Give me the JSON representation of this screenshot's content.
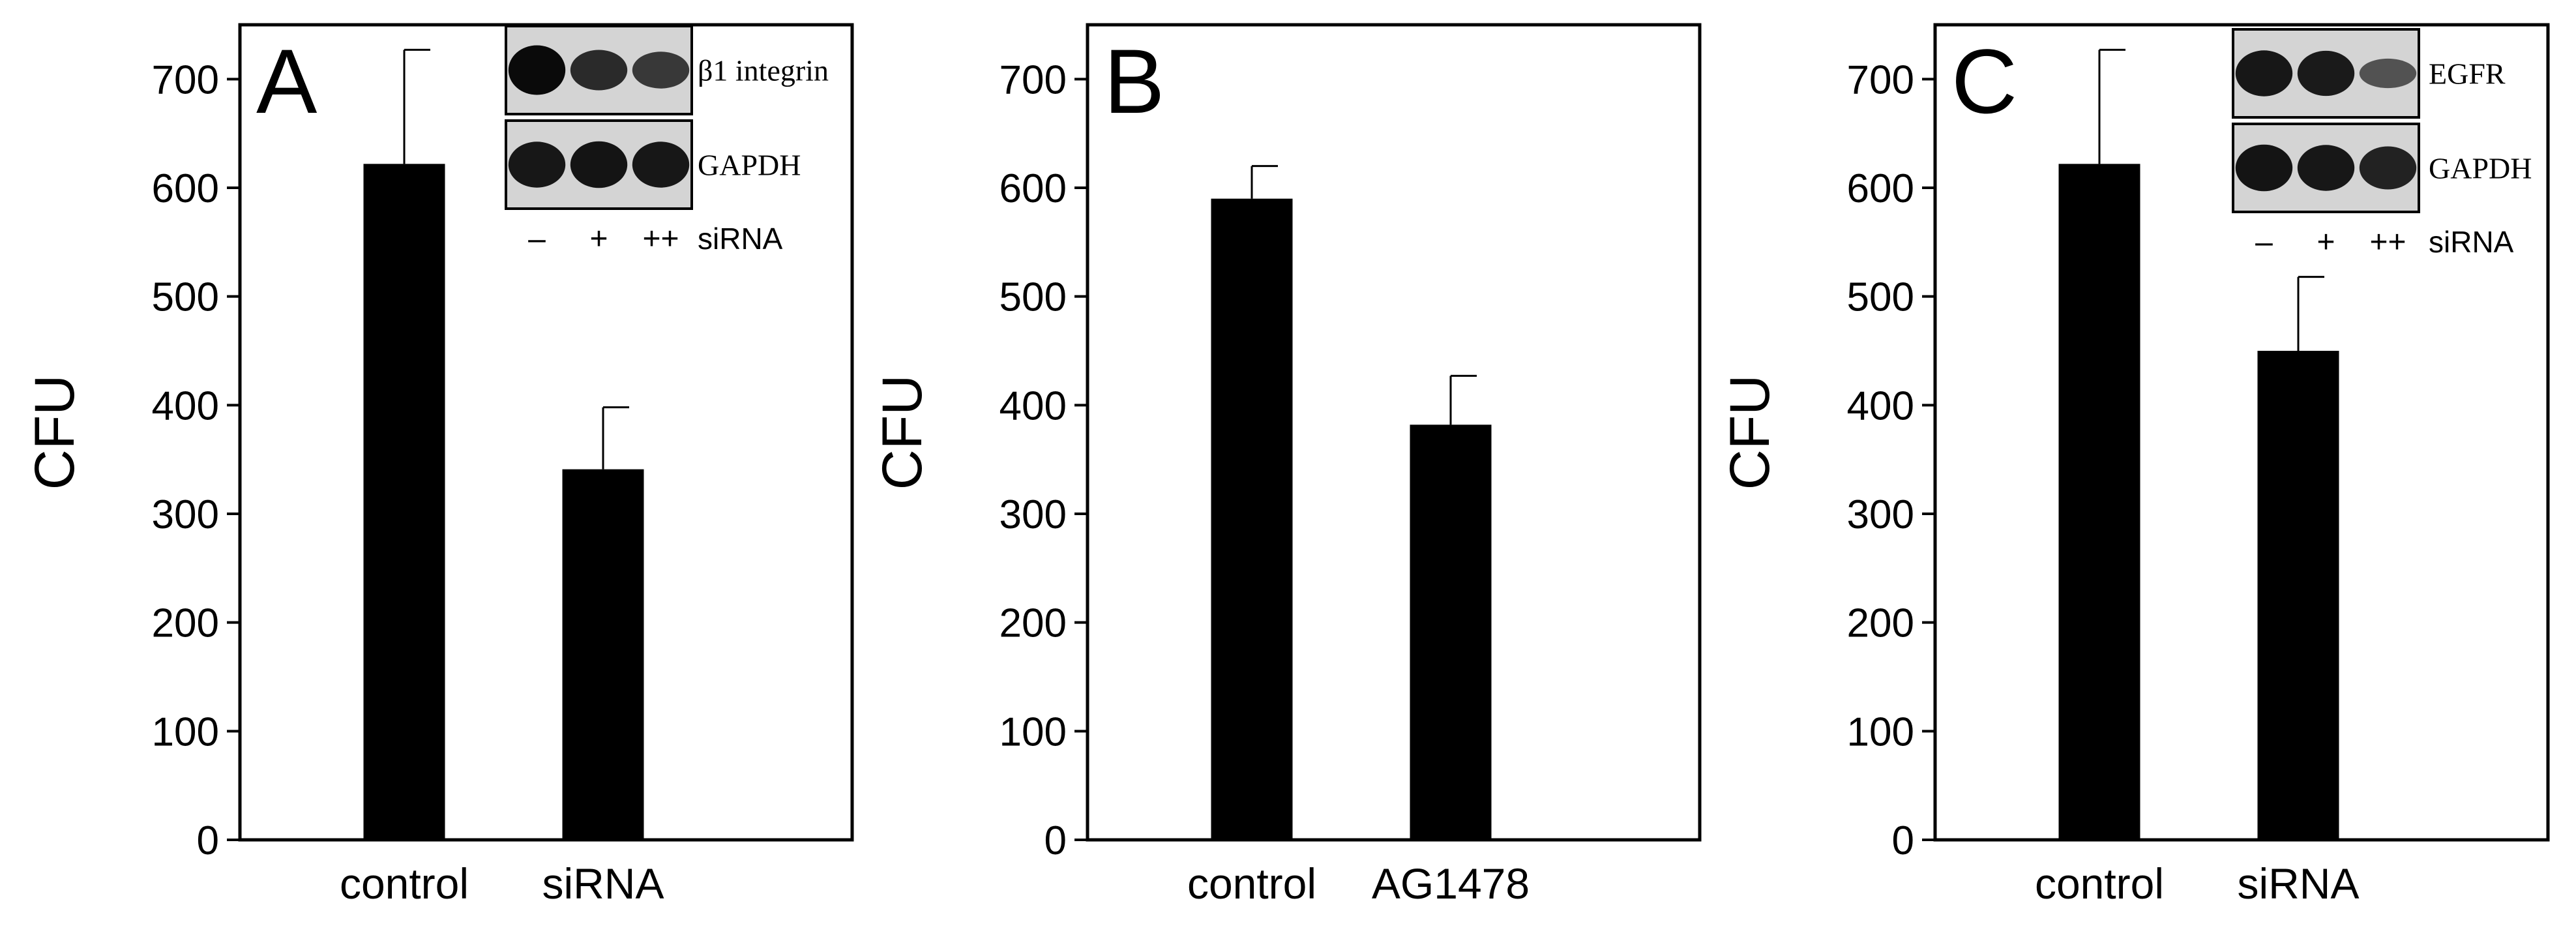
{
  "chart_data": [
    {
      "type": "bar",
      "panel_label": "A",
      "ylabel": "CFU",
      "xlabel": "",
      "ylim": [
        0,
        750
      ],
      "yticks": [
        "0",
        "100",
        "200",
        "300",
        "400",
        "500",
        "600",
        "700"
      ],
      "categories": [
        "control",
        "siRNA"
      ],
      "values": [
        622,
        341
      ],
      "errors": [
        105,
        57
      ],
      "bar_color": "#000000",
      "inset": {
        "type": "western-blot",
        "bands": [
          "β1 integrin",
          "GAPDH"
        ],
        "lanes": [
          "–",
          "+",
          "++"
        ],
        "lanes_label": "siRNA",
        "intensity": [
          [
            1.0,
            0.75,
            0.65
          ],
          [
            0.9,
            0.92,
            0.9
          ]
        ]
      }
    },
    {
      "type": "bar",
      "panel_label": "B",
      "ylabel": "CFU",
      "xlabel": "",
      "ylim": [
        0,
        750
      ],
      "yticks": [
        "0",
        "100",
        "200",
        "300",
        "400",
        "500",
        "600",
        "700"
      ],
      "categories": [
        "control",
        "AG1478"
      ],
      "values": [
        590,
        382
      ],
      "errors": [
        30,
        45
      ],
      "bar_color": "#000000"
    },
    {
      "type": "bar",
      "panel_label": "C",
      "ylabel": "CFU",
      "xlabel": "",
      "ylim": [
        0,
        750
      ],
      "yticks": [
        "0",
        "100",
        "200",
        "300",
        "400",
        "500",
        "600",
        "700"
      ],
      "categories": [
        "control",
        "siRNA"
      ],
      "values": [
        622,
        450
      ],
      "errors": [
        105,
        68
      ],
      "bar_color": "#000000",
      "inset": {
        "type": "western-blot",
        "bands": [
          "EGFR",
          "GAPDH"
        ],
        "lanes": [
          "–",
          "+",
          "++"
        ],
        "lanes_label": "siRNA",
        "intensity": [
          [
            0.9,
            0.88,
            0.45
          ],
          [
            0.92,
            0.9,
            0.82
          ]
        ]
      }
    }
  ]
}
